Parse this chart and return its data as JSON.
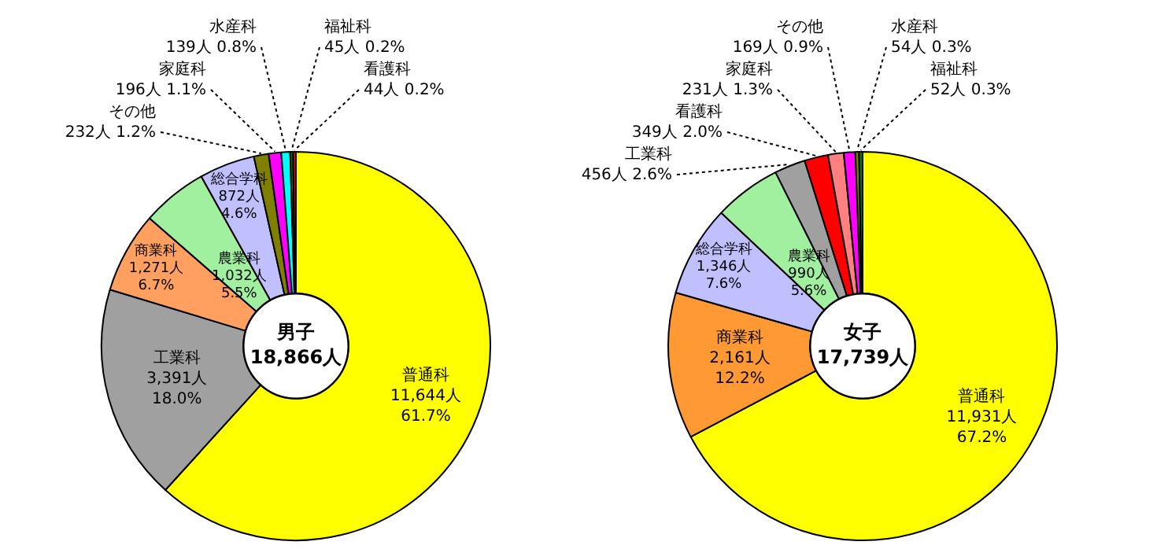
{
  "chart_data": [
    {
      "type": "donut",
      "title": "男子",
      "subtitle": "18,866人",
      "categories": [
        "普通科",
        "工業科",
        "商業科",
        "農業科",
        "総合学科",
        "その他",
        "家庭科",
        "水産科",
        "福祉科",
        "看護科"
      ],
      "values": [
        11644,
        3391,
        1271,
        1032,
        872,
        232,
        196,
        139,
        45,
        44
      ],
      "colors": [
        "#ffff00",
        "#a0a0a0",
        "#ffa060",
        "#a0f0a0",
        "#c0c0ff",
        "#808000",
        "#ff00ff",
        "#00ffff",
        "#008000",
        "#ff0000"
      ],
      "value_labels": [
        "11,644人 61.7%",
        "3,391人 18.0%",
        "1,271人 6.7%",
        "1,032人 5.5%",
        "872人 4.6%",
        "232人 1.2%",
        "196人 1.1%",
        "139人 0.8%",
        "45人 0.2%",
        "44人 0.2%"
      ]
    },
    {
      "type": "donut",
      "title": "女子",
      "subtitle": "17,739人",
      "categories": [
        "普通科",
        "商業科",
        "総合学科",
        "農業科",
        "工業科",
        "看護科",
        "家庭科",
        "その他",
        "水産科",
        "福祉科"
      ],
      "values": [
        11931,
        2161,
        1346,
        990,
        456,
        349,
        231,
        169,
        54,
        52
      ],
      "colors": [
        "#ffff00",
        "#ff9933",
        "#c0c0ff",
        "#a0f0a0",
        "#a0a0a0",
        "#ff0000",
        "#ff8080",
        "#ff00ff",
        "#808000",
        "#008000"
      ],
      "value_labels": [
        "11,931人 67.2%",
        "2,161人 12.2%",
        "1,346人 7.6%",
        "990人 5.6%",
        "456人 2.6%",
        "349人 2.0%",
        "231人 1.3%",
        "169人 0.9%",
        "54人 0.3%",
        "52人 0.3%"
      ]
    }
  ]
}
